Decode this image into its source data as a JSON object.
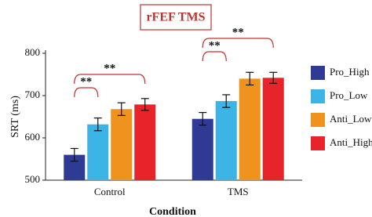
{
  "chart_data": {
    "type": "bar",
    "title": "rFEF TMS",
    "x_label": "Condition",
    "y_label": "SRT (ms)",
    "categories": [
      "Control",
      "TMS"
    ],
    "series": [
      {
        "name": "Pro_High",
        "color": "#2e3a94",
        "values": [
          560,
          645
        ],
        "errors": [
          15,
          15
        ]
      },
      {
        "name": "Pro_Low",
        "color": "#3cb4e6",
        "values": [
          632,
          687
        ],
        "errors": [
          15,
          15
        ]
      },
      {
        "name": "Anti_Low",
        "color": "#f0921e",
        "values": [
          668,
          740
        ],
        "errors": [
          15,
          15
        ]
      },
      {
        "name": "Anti_High",
        "color": "#e8232a",
        "values": [
          679,
          742
        ],
        "errors": [
          14,
          13
        ]
      }
    ],
    "annotations": [
      "**",
      "**",
      "**",
      "**"
    ],
    "ylim": [
      500,
      800
    ],
    "yticks": [
      500,
      600,
      700,
      800
    ]
  }
}
